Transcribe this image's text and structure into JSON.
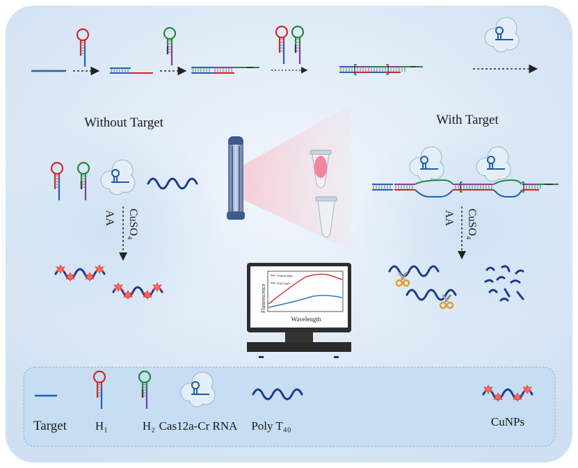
{
  "headings": {
    "without_target": "Without Target",
    "with_target": "With Target"
  },
  "reagents": {
    "cuso4": "CuSO₄",
    "aa": "AA"
  },
  "monitor_chart": {
    "ylabel": "Fluorescence",
    "xlabel": "Wavelength",
    "legend": [
      "Without target",
      "With Target"
    ]
  },
  "legend": {
    "items": [
      {
        "label": "Target",
        "icon": "target-strand-icon"
      },
      {
        "label": "H₁",
        "icon": "hairpin-h1-icon"
      },
      {
        "label": "H₂",
        "icon": "hairpin-h2-icon"
      },
      {
        "label": "Cas12a-Cr RNA",
        "icon": "cas12a-crrna-icon"
      },
      {
        "label": "Poly T₄₀",
        "icon": "poly-t40-icon"
      },
      {
        "label": "CuNPs",
        "icon": "cunps-icon"
      }
    ]
  },
  "colors": {
    "target": "#1f5fb8",
    "h1_loop": "#d0262b",
    "h2_loop": "#1e8a3a",
    "h2_tail": "#7a3fa0",
    "polyT": "#1a3a8c",
    "cunp": "#e8463c",
    "scissors": "#e39a2a",
    "background": "#dce9f6"
  }
}
